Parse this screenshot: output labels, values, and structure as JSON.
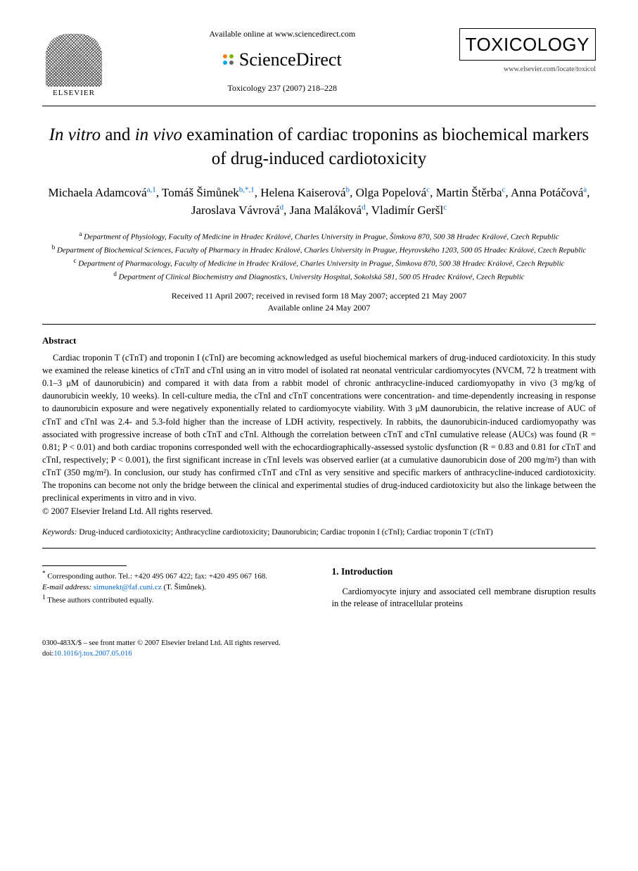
{
  "header": {
    "publisher_name": "ELSEVIER",
    "available_online": "Available online at www.sciencedirect.com",
    "sciencedirect_label": "ScienceDirect",
    "sd_dot_colors": [
      "#f58220",
      "#7ab800",
      "#00a9e0",
      "#666666"
    ],
    "journal_ref": "Toxicology 237 (2007) 218–228",
    "journal_name": "TOXICOLOGY",
    "journal_url": "www.elsevier.com/locate/toxicol"
  },
  "title_parts": {
    "p1": "In vitro",
    "p2": " and ",
    "p3": "in vivo",
    "p4": " examination of cardiac troponins as biochemical markers of drug-induced cardiotoxicity"
  },
  "authors": [
    {
      "name": "Michaela Adamcová",
      "sup": "a,1"
    },
    {
      "name": "Tomáš Šimůnek",
      "sup": "b,*,1"
    },
    {
      "name": "Helena Kaiserová",
      "sup": "b"
    },
    {
      "name": "Olga Popelová",
      "sup": "c"
    },
    {
      "name": "Martin Štěrba",
      "sup": "c"
    },
    {
      "name": "Anna Potáčová",
      "sup": "a"
    },
    {
      "name": "Jaroslava Vávrová",
      "sup": "d"
    },
    {
      "name": "Jana Maláková",
      "sup": "d"
    },
    {
      "name": "Vladimír Geršl",
      "sup": "c"
    }
  ],
  "affiliations": [
    {
      "sup": "a",
      "text": "Department of Physiology, Faculty of Medicine in Hradec Králové, Charles University in Prague, Šimkova 870, 500 38 Hradec Králové, Czech Republic"
    },
    {
      "sup": "b",
      "text": "Department of Biochemical Sciences, Faculty of Pharmacy in Hradec Králové, Charles University in Prague, Heyrovského 1203, 500 05 Hradec Králové, Czech Republic"
    },
    {
      "sup": "c",
      "text": "Department of Pharmacology, Faculty of Medicine in Hradec Králové, Charles University in Prague, Šimkova 870, 500 38 Hradec Králové, Czech Republic"
    },
    {
      "sup": "d",
      "text": "Department of Clinical Biochemistry and Diagnostics, University Hospital, Sokolská 581, 500 05 Hradec Králové, Czech Republic"
    }
  ],
  "dates": {
    "line1": "Received 11 April 2007; received in revised form 18 May 2007; accepted 21 May 2007",
    "line2": "Available online 24 May 2007"
  },
  "abstract": {
    "heading": "Abstract",
    "body": "Cardiac troponin T (cTnT) and troponin I (cTnI) are becoming acknowledged as useful biochemical markers of drug-induced cardiotoxicity. In this study we examined the release kinetics of cTnT and cTnI using an in vitro model of isolated rat neonatal ventricular cardiomyocytes (NVCM, 72 h treatment with 0.1–3 μM of daunorubicin) and compared it with data from a rabbit model of chronic anthracycline-induced cardiomyopathy in vivo (3 mg/kg of daunorubicin weekly, 10 weeks). In cell-culture media, the cTnI and cTnT concentrations were concentration- and time-dependently increasing in response to daunorubicin exposure and were negatively exponentially related to cardiomyocyte viability. With 3 μM daunorubicin, the relative increase of AUC of cTnT and cTnI was 2.4- and 5.3-fold higher than the increase of LDH activity, respectively. In rabbits, the daunorubicin-induced cardiomyopathy was associated with progressive increase of both cTnT and cTnI. Although the correlation between cTnT and cTnI cumulative release (AUCs) was found (R = 0.81; P < 0.01) and both cardiac troponins corresponded well with the echocardiographically-assessed systolic dysfunction (R = 0.83 and 0.81 for cTnT and cTnI, respectively; P < 0.001), the first significant increase in cTnI levels was observed earlier (at a cumulative daunorubicin dose of 200 mg/m²) than with cTnT (350 mg/m²). In conclusion, our study has confirmed cTnT and cTnI as very sensitive and specific markers of anthracycline-induced cardiotoxicity. The troponins can become not only the bridge between the clinical and experimental studies of drug-induced cardiotoxicity but also the linkage between the preclinical experiments in vitro and in vivo.",
    "copyright": "© 2007 Elsevier Ireland Ltd. All rights reserved."
  },
  "keywords": {
    "label": "Keywords:",
    "list": "Drug-induced cardiotoxicity; Anthracycline cardiotoxicity; Daunorubicin; Cardiac troponin I (cTnI); Cardiac troponin T (cTnT)"
  },
  "footnotes": {
    "corresponding": "Corresponding author. Tel.: +420 495 067 422; fax: +420 495 067 168.",
    "email_label": "E-mail address:",
    "email": "simunekt@faf.cuni.cz",
    "email_who": "(T. Šimůnek).",
    "equal": "These authors contributed equally."
  },
  "intro": {
    "heading": "1.  Introduction",
    "p1": "Cardiomyocyte injury and associated cell membrane disruption results in the release of intracellular proteins"
  },
  "footer": {
    "line1": "0300-483X/$ – see front matter © 2007 Elsevier Ireland Ltd. All rights reserved.",
    "doi_label": "doi:",
    "doi": "10.1016/j.tox.2007.05.016"
  }
}
